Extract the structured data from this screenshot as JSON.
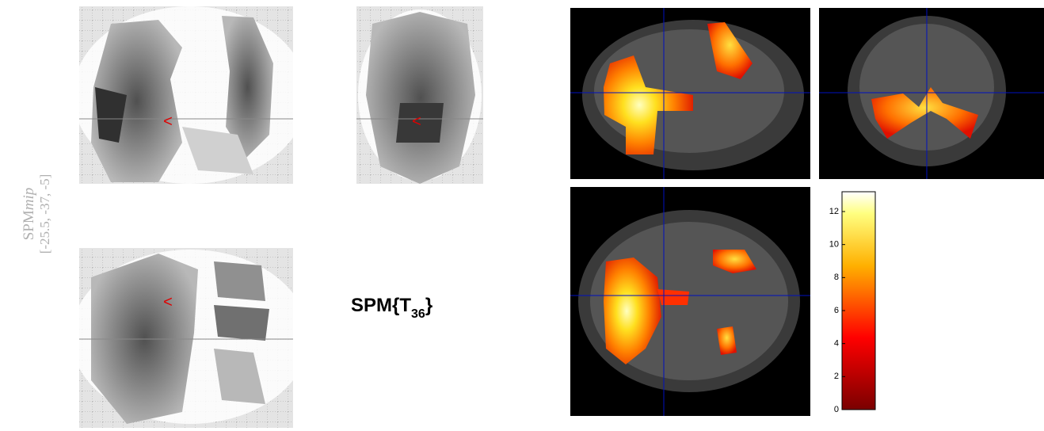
{
  "mip": {
    "name": "SPM",
    "suffix": "mip",
    "coordinates": "[-25.5, -37, -5]"
  },
  "statistic": {
    "prefix": "SPM{T",
    "df": "36",
    "suffix": "}"
  },
  "colorbar": {
    "lim": [
      0,
      13.2
    ],
    "ticks": [
      0,
      2,
      4,
      6,
      8,
      10,
      12
    ]
  }
}
